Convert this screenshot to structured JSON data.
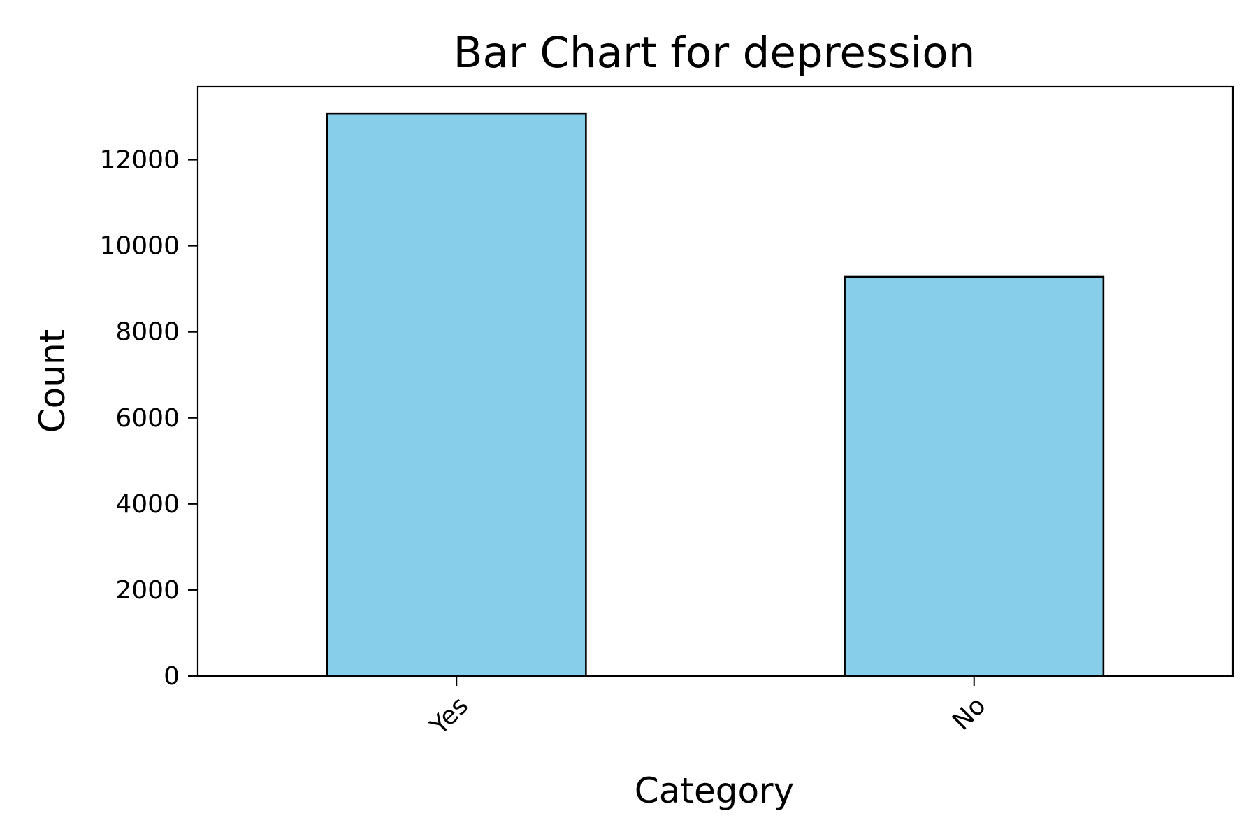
{
  "chart_data": {
    "type": "bar",
    "title": "Bar Chart for depression",
    "xlabel": "Category",
    "ylabel": "Count",
    "categories": [
      "Yes",
      "No"
    ],
    "values": [
      13080,
      9280
    ],
    "ylim": [
      0,
      13700
    ],
    "yticks": [
      0,
      2000,
      4000,
      6000,
      8000,
      10000,
      12000
    ],
    "bar_color": "#87CEEB",
    "edge_color": "#000000",
    "grid": false,
    "legend": "none"
  }
}
